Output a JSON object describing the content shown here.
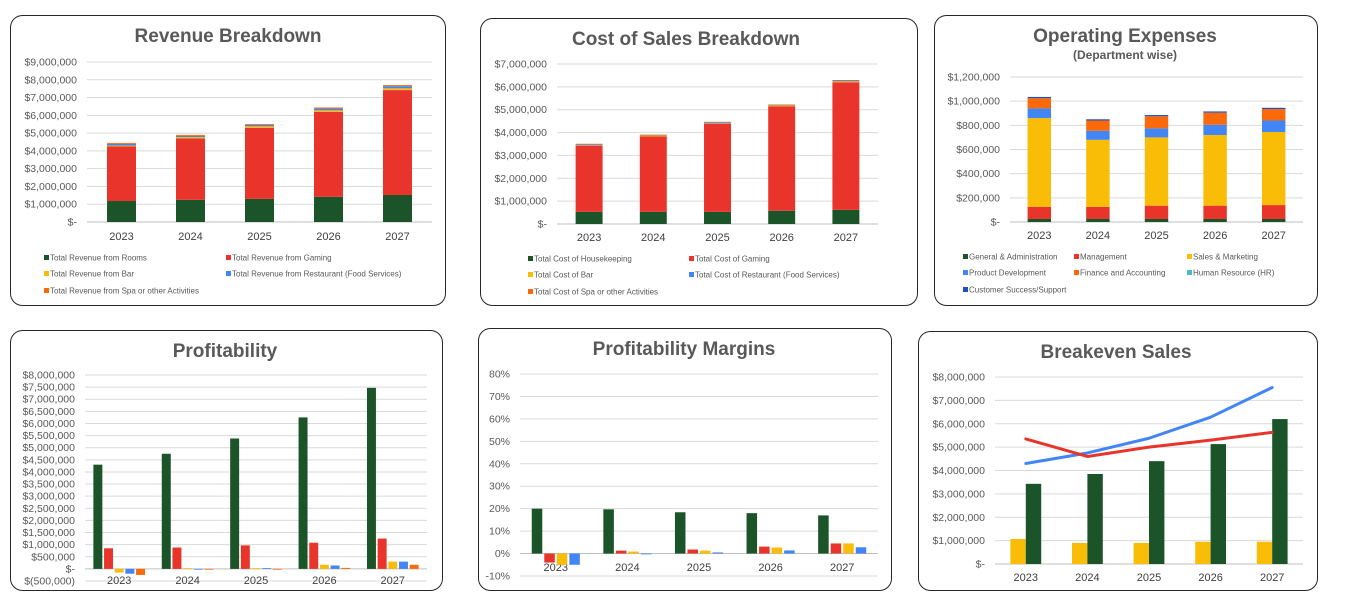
{
  "colors": {
    "green": "#1a5428",
    "red": "#e8342a",
    "yellow": "#f9bc07",
    "blue": "#4285f4",
    "orange": "#fa6a0a",
    "teal": "#46bdc6",
    "navy": "#1c4fc4",
    "title": "#595959",
    "grid": "#d9d9d9"
  },
  "chart_data": [
    {
      "type": "bar",
      "stacked": true,
      "title": "Revenue Breakdown",
      "categories": [
        "2023",
        "2024",
        "2025",
        "2026",
        "2027"
      ],
      "ylim": [
        0,
        9000000
      ],
      "ytick_labels": [
        "$-",
        "$1,000,000",
        "$2,000,000",
        "$3,000,000",
        "$4,000,000",
        "$5,000,000",
        "$6,000,000",
        "$7,000,000",
        "$8,000,000",
        "$9,000,000"
      ],
      "grid": true,
      "legend": "bottom",
      "series": [
        {
          "name": "Total Revenue from Rooms",
          "color": "#1a5428",
          "values": [
            1180000,
            1250000,
            1300000,
            1420000,
            1520000
          ]
        },
        {
          "name": "Total Revenue from Gaming",
          "color": "#e8342a",
          "values": [
            3070000,
            3450000,
            4000000,
            4780000,
            5900000
          ]
        },
        {
          "name": "Total Revenue from Bar",
          "color": "#f9bc07",
          "values": [
            50000,
            80000,
            80000,
            80000,
            100000
          ]
        },
        {
          "name": "Total Revenue from Restaurant (Food Services)",
          "color": "#4285f4",
          "values": [
            100000,
            70000,
            80000,
            100000,
            120000
          ]
        },
        {
          "name": "Total Revenue from Spa or other Activities",
          "color": "#fa6a0a",
          "values": [
            50000,
            50000,
            50000,
            60000,
            60000
          ]
        }
      ]
    },
    {
      "type": "bar",
      "stacked": true,
      "title": "Cost of Sales Breakdown",
      "categories": [
        "2023",
        "2024",
        "2025",
        "2026",
        "2027"
      ],
      "ylim": [
        0,
        7000000
      ],
      "ytick_labels": [
        "$-",
        "$1,000,000",
        "$2,000,000",
        "$3,000,000",
        "$4,000,000",
        "$5,000,000",
        "$6,000,000",
        "$7,000,000"
      ],
      "grid": true,
      "legend": "bottom",
      "series": [
        {
          "name": "Total Cost of Housekeeping",
          "color": "#1a5428",
          "values": [
            530000,
            530000,
            530000,
            580000,
            620000
          ]
        },
        {
          "name": "Total Cost of Gaming",
          "color": "#e8342a",
          "values": [
            2900000,
            3300000,
            3850000,
            4570000,
            5580000
          ]
        },
        {
          "name": "Total Cost of Bar",
          "color": "#f9bc07",
          "values": [
            20000,
            50000,
            20000,
            50000,
            40000
          ]
        },
        {
          "name": "Total Cost of Restaurant (Food Services)",
          "color": "#4285f4",
          "values": [
            40000,
            10000,
            50000,
            10000,
            40000
          ]
        },
        {
          "name": "Total Cost of Spa or other Activities",
          "color": "#fa6a0a",
          "values": [
            20000,
            20000,
            20000,
            20000,
            20000
          ]
        }
      ]
    },
    {
      "type": "bar",
      "stacked": true,
      "title": "Operating Expenses",
      "subtitle": "(Department wise)",
      "categories": [
        "2023",
        "2024",
        "2025",
        "2026",
        "2027"
      ],
      "ylim": [
        0,
        1200000
      ],
      "ytick_labels": [
        "$-",
        "$200,000",
        "$400,000",
        "$600,000",
        "$800,000",
        "$1,000,000",
        "$1,200,000"
      ],
      "grid": true,
      "legend": "bottom",
      "series": [
        {
          "name": "General & Administration",
          "color": "#1a5428",
          "values": [
            25000,
            25000,
            25000,
            25000,
            25000
          ]
        },
        {
          "name": "Management",
          "color": "#e8342a",
          "values": [
            100000,
            100000,
            110000,
            110000,
            115000
          ]
        },
        {
          "name": "Sales & Marketing",
          "color": "#f9bc07",
          "values": [
            735000,
            555000,
            565000,
            585000,
            605000
          ]
        },
        {
          "name": "Product Development",
          "color": "#4285f4",
          "values": [
            80000,
            75000,
            75000,
            85000,
            95000
          ]
        },
        {
          "name": "Finance and Accounting",
          "color": "#fa6a0a",
          "values": [
            85000,
            85000,
            100000,
            100000,
            95000
          ]
        },
        {
          "name": "Human Resource (HR)",
          "color": "#46bdc6",
          "values": [
            0,
            0,
            0,
            0,
            0
          ]
        },
        {
          "name": "Customer Success/Support",
          "color": "#1c4fc4",
          "values": [
            10000,
            10000,
            10000,
            10000,
            10000
          ]
        }
      ]
    },
    {
      "type": "bar",
      "stacked": false,
      "title": "Profitability",
      "categories": [
        "2023",
        "2024",
        "2025",
        "2026",
        "2027"
      ],
      "ylim": [
        -500000,
        8000000
      ],
      "ytick_labels": [
        "$(500,000)",
        "$-",
        "$500,000",
        "$1,000,000",
        "$1,500,000",
        "$2,000,000",
        "$2,500,000",
        "$3,000,000",
        "$3,500,000",
        "$4,000,000",
        "$4,500,000",
        "$5,000,000",
        "$5,500,000",
        "$6,000,000",
        "$6,500,000",
        "$7,000,000",
        "$7,500,000",
        "$8,000,000"
      ],
      "grid": true,
      "series": [
        {
          "color": "#1a5428",
          "values": [
            4300000,
            4750000,
            5380000,
            6250000,
            7470000
          ]
        },
        {
          "color": "#e8342a",
          "values": [
            850000,
            880000,
            970000,
            1080000,
            1250000
          ]
        },
        {
          "color": "#f9bc07",
          "values": [
            -150000,
            30000,
            30000,
            170000,
            300000
          ]
        },
        {
          "color": "#4285f4",
          "values": [
            -200000,
            0,
            30000,
            140000,
            300000
          ]
        },
        {
          "color": "#fa6a0a",
          "values": [
            -250000,
            -30000,
            0,
            40000,
            170000
          ]
        }
      ]
    },
    {
      "type": "bar",
      "stacked": false,
      "title": "Profitability Margins",
      "categories": [
        "2023",
        "2024",
        "2025",
        "2026",
        "2027"
      ],
      "ylim": [
        -10,
        80
      ],
      "ytick_labels": [
        "-10%",
        "0%",
        "10%",
        "20%",
        "30%",
        "40%",
        "50%",
        "60%",
        "70%",
        "80%"
      ],
      "grid": true,
      "series": [
        {
          "color": "#1a5428",
          "values": [
            20,
            19.7,
            18.4,
            18,
            17
          ]
        },
        {
          "color": "#e8342a",
          "values": [
            -4,
            1.3,
            1.8,
            3.1,
            4.5
          ]
        },
        {
          "color": "#f9bc07",
          "values": [
            -5,
            0.9,
            1.3,
            2.7,
            4.5
          ]
        },
        {
          "color": "#4285f4",
          "values": [
            -5,
            0,
            0.5,
            1.4,
            2.8
          ]
        }
      ]
    },
    {
      "type": "combo",
      "stacked": false,
      "title": "Breakeven Sales",
      "categories": [
        "2023",
        "2024",
        "2025",
        "2026",
        "2027"
      ],
      "ylim": [
        0,
        8000000
      ],
      "ytick_labels": [
        "$-",
        "$1,000,000",
        "$2,000,000",
        "$3,000,000",
        "$4,000,000",
        "$5,000,000",
        "$6,000,000",
        "$7,000,000",
        "$8,000,000"
      ],
      "grid": true,
      "series": [
        {
          "kind": "bar",
          "color": "#f9bc07",
          "values": [
            1070000,
            900000,
            900000,
            950000,
            950000
          ]
        },
        {
          "kind": "bar",
          "color": "#1a5428",
          "values": [
            3430000,
            3850000,
            4400000,
            5130000,
            6200000
          ]
        },
        {
          "kind": "line",
          "color": "#4285f4",
          "values": [
            4300000,
            4750000,
            5380000,
            6280000,
            7550000
          ]
        },
        {
          "kind": "line",
          "color": "#e8342a",
          "values": [
            5350000,
            4600000,
            5000000,
            5300000,
            5630000
          ]
        }
      ]
    }
  ]
}
